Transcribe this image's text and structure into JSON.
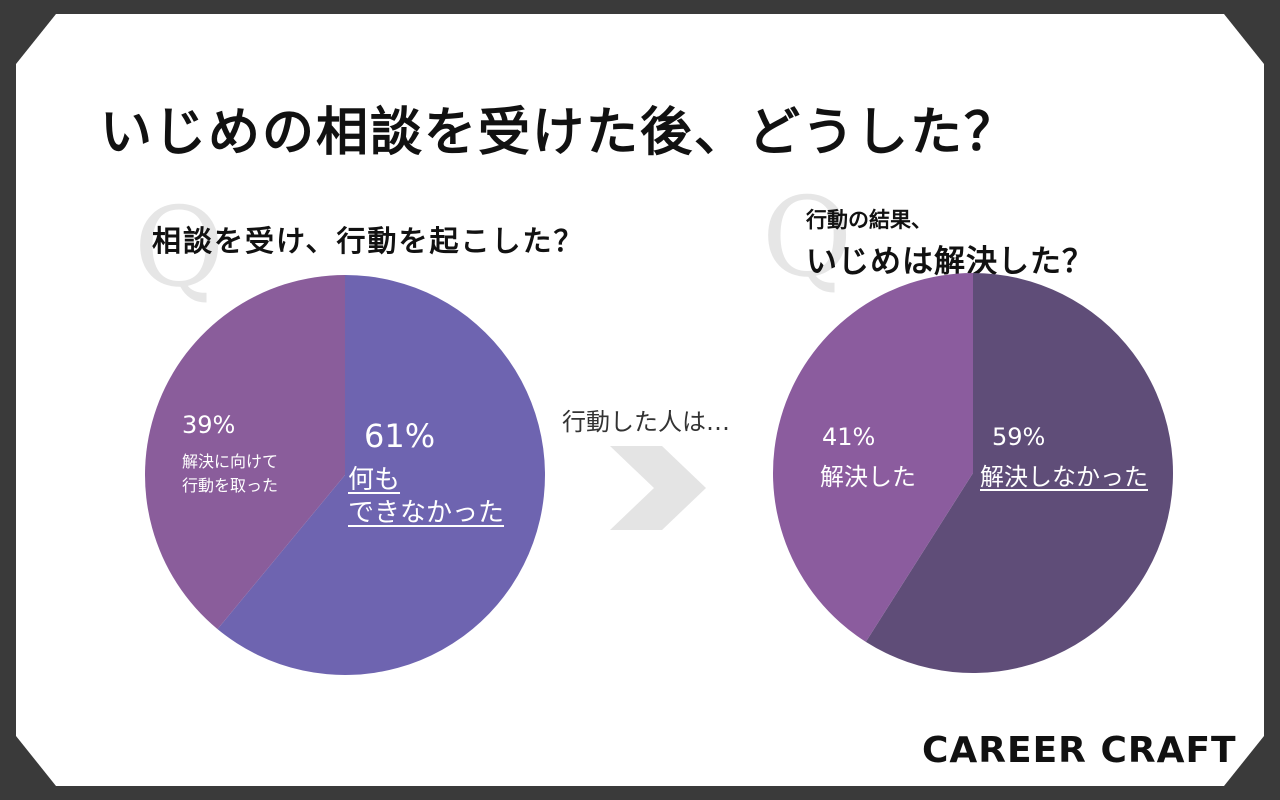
{
  "title": "いじめの相談を受けた後、どうした？",
  "arrow_text": "行動した人は…",
  "brand": "CAREER CRAFT",
  "q_mark": "Q",
  "chart_data": [
    {
      "type": "pie",
      "title": "相談を受け、行動を起こした？",
      "slices": [
        {
          "label_lines": [
            "何も",
            "できなかった"
          ],
          "value": 61,
          "display": "61%",
          "color": "#6e64b0"
        },
        {
          "label_lines": [
            "解決に向けて",
            "行動を取った"
          ],
          "value": 39,
          "display": "39%",
          "color": "#8a5d9b"
        }
      ]
    },
    {
      "type": "pie",
      "title_lines": [
        "行動の結果、",
        "いじめは解決した？"
      ],
      "slices": [
        {
          "label": "解決しなかった",
          "value": 59,
          "display": "59%",
          "color": "#5f4d78"
        },
        {
          "label": "解決した",
          "value": 41,
          "display": "41%",
          "color": "#8b5c9e"
        }
      ]
    }
  ]
}
